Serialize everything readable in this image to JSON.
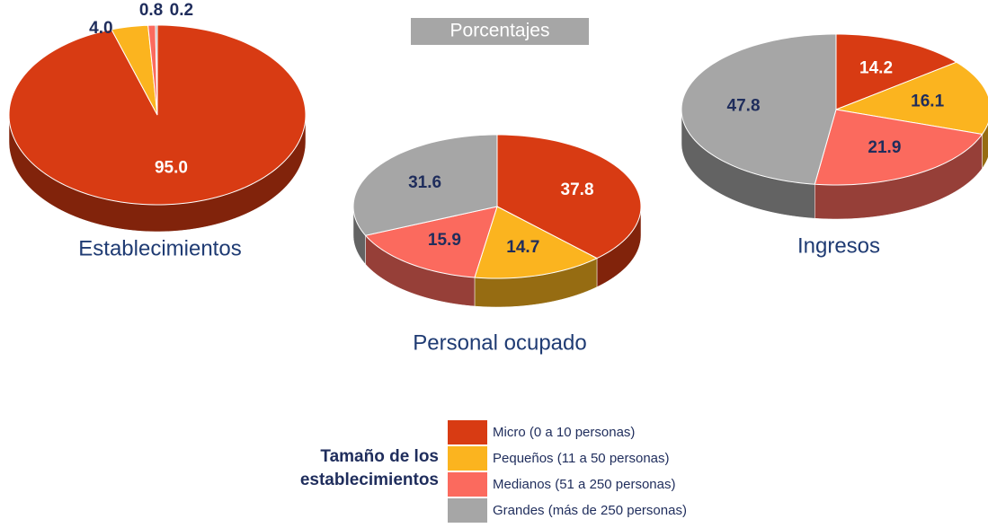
{
  "subtitle": "Porcentajes",
  "legend": {
    "title": "Tamaño de los establecimientos",
    "items": [
      {
        "name": "Micro (0 a 10 personas)",
        "color": "#d83b13"
      },
      {
        "name": "Pequeños (11 a 50 personas)",
        "color": "#fbb41f"
      },
      {
        "name": "Medianos (51 a 250 personas)",
        "color": "#fb6a5e"
      },
      {
        "name": "Grandes (más de 250 personas)",
        "color": "#a6a6a6"
      }
    ]
  },
  "chart_data": [
    {
      "type": "pie",
      "title": "Establecimientos",
      "values": [
        95.0,
        4.0,
        0.8,
        0.2
      ],
      "value_labels": [
        "95.0",
        "4.0",
        "0.8",
        "0.2"
      ]
    },
    {
      "type": "pie",
      "title": "Personal ocupado",
      "values": [
        37.8,
        14.7,
        15.9,
        31.6
      ]
    },
    {
      "type": "pie",
      "title": "Ingresos",
      "values": [
        14.2,
        16.1,
        21.9,
        47.8
      ]
    }
  ]
}
